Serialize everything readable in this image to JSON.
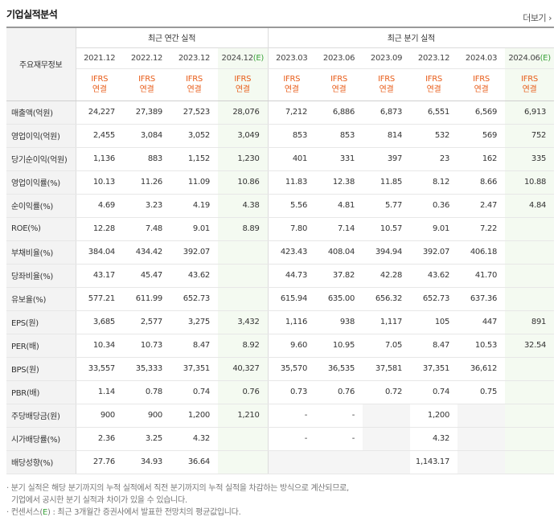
{
  "header": {
    "title": "기업실적분석",
    "more_label": "더보기"
  },
  "table": {
    "corner_label": "주요재무정보",
    "group_annual": "최근 연간 실적",
    "group_quarter": "최근 분기 실적",
    "periods": [
      {
        "label": "2021.12",
        "est": ""
      },
      {
        "label": "2022.12",
        "est": ""
      },
      {
        "label": "2023.12",
        "est": ""
      },
      {
        "label": "2024.12",
        "est": "(E)"
      },
      {
        "label": "2023.03",
        "est": ""
      },
      {
        "label": "2023.06",
        "est": ""
      },
      {
        "label": "2023.09",
        "est": ""
      },
      {
        "label": "2023.12",
        "est": ""
      },
      {
        "label": "2024.03",
        "est": ""
      },
      {
        "label": "2024.06",
        "est": "(E)"
      }
    ],
    "ifrs_top": "IFRS",
    "ifrs_bottom": "연결",
    "rows": [
      {
        "label": "매출액(억원)",
        "values": [
          "24,227",
          "27,389",
          "27,523",
          "28,076",
          "7,212",
          "6,886",
          "6,873",
          "6,551",
          "6,569",
          "6,913"
        ]
      },
      {
        "label": "영업이익(억원)",
        "values": [
          "2,455",
          "3,084",
          "3,052",
          "3,049",
          "853",
          "853",
          "814",
          "532",
          "569",
          "752"
        ]
      },
      {
        "label": "당기순이익(억원)",
        "values": [
          "1,136",
          "883",
          "1,152",
          "1,230",
          "401",
          "331",
          "397",
          "23",
          "162",
          "335"
        ]
      },
      {
        "label": "영업이익률(%)",
        "values": [
          "10.13",
          "11.26",
          "11.09",
          "10.86",
          "11.83",
          "12.38",
          "11.85",
          "8.12",
          "8.66",
          "10.88"
        ]
      },
      {
        "label": "순이익률(%)",
        "values": [
          "4.69",
          "3.23",
          "4.19",
          "4.38",
          "5.56",
          "4.81",
          "5.77",
          "0.36",
          "2.47",
          "4.84"
        ]
      },
      {
        "label": "ROE(%)",
        "values": [
          "12.28",
          "7.48",
          "9.01",
          "8.89",
          "7.80",
          "7.14",
          "10.57",
          "9.01",
          "7.22",
          ""
        ]
      },
      {
        "label": "부채비율(%)",
        "values": [
          "384.04",
          "434.42",
          "392.07",
          "",
          "423.43",
          "408.04",
          "394.94",
          "392.07",
          "406.18",
          ""
        ]
      },
      {
        "label": "당좌비율(%)",
        "values": [
          "43.17",
          "45.47",
          "43.62",
          "",
          "44.73",
          "37.82",
          "42.28",
          "43.62",
          "41.70",
          ""
        ]
      },
      {
        "label": "유보율(%)",
        "values": [
          "577.21",
          "611.99",
          "652.73",
          "",
          "615.94",
          "635.00",
          "656.32",
          "652.73",
          "637.36",
          ""
        ]
      },
      {
        "label": "EPS(원)",
        "values": [
          "3,685",
          "2,577",
          "3,275",
          "3,432",
          "1,116",
          "938",
          "1,117",
          "105",
          "447",
          "891"
        ]
      },
      {
        "label": "PER(배)",
        "values": [
          "10.34",
          "10.73",
          "8.47",
          "8.92",
          "9.60",
          "10.95",
          "7.05",
          "8.47",
          "10.53",
          "32.54"
        ]
      },
      {
        "label": "BPS(원)",
        "values": [
          "33,557",
          "35,333",
          "37,351",
          "40,327",
          "35,570",
          "36,535",
          "37,581",
          "37,351",
          "36,612",
          ""
        ]
      },
      {
        "label": "PBR(배)",
        "values": [
          "1.14",
          "0.78",
          "0.74",
          "0.76",
          "0.73",
          "0.76",
          "0.72",
          "0.74",
          "0.75",
          ""
        ]
      },
      {
        "label": "주당배당금(원)",
        "values": [
          "900",
          "900",
          "1,200",
          "1,210",
          "-",
          "-",
          "",
          "1,200",
          "",
          ""
        ]
      },
      {
        "label": "시가배당률(%)",
        "values": [
          "2.36",
          "3.25",
          "4.32",
          "",
          "-",
          "-",
          "",
          "4.32",
          "",
          ""
        ]
      },
      {
        "label": "배당성향(%)",
        "values": [
          "27.76",
          "34.93",
          "36.64",
          "",
          "",
          "",
          "",
          "1,143.17",
          "",
          ""
        ]
      }
    ]
  },
  "notes": {
    "line1": "분기 실적은 해당 분기까지의 누적 실적에서 직전 분기까지의 누적 실적을 차감하는 방식으로 계산되므로,",
    "line2": "기업에서 공시한 분기 실적과 차이가 있을 수 있습니다.",
    "line3_prefix": "컨센서스(",
    "line3_mark": "E",
    "line3_suffix": ") : 최근 3개월간 증권사에서 발표한 전망치의 평균값입니다."
  }
}
